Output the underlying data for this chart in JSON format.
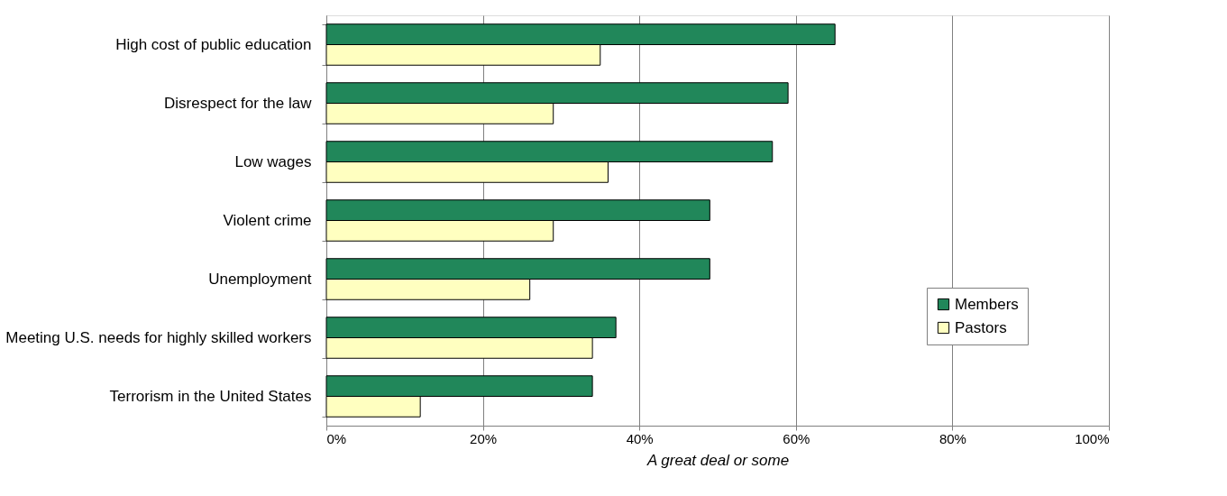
{
  "chart_data": {
    "type": "bar",
    "orientation": "horizontal",
    "categories": [
      "High cost of public education",
      "Disrespect for the law",
      "Low wages",
      "Violent crime",
      "Unemployment",
      "Meeting U.S. needs for highly skilled workers",
      "Terrorism in the United States"
    ],
    "series": [
      {
        "name": "Members",
        "color": "#21875a",
        "values": [
          65,
          59,
          57,
          49,
          49,
          37,
          34
        ]
      },
      {
        "name": "Pastors",
        "color": "#ffffc0",
        "values": [
          35,
          29,
          36,
          29,
          26,
          34,
          12
        ]
      }
    ],
    "xlim": [
      0,
      100
    ],
    "xticks": [
      {
        "value": 0,
        "label": "0%"
      },
      {
        "value": 20,
        "label": "20%"
      },
      {
        "value": 40,
        "label": "40%"
      },
      {
        "value": 60,
        "label": "60%"
      },
      {
        "value": 80,
        "label": "80%"
      },
      {
        "value": 100,
        "label": "100%"
      }
    ],
    "xlabel": "A great deal or some",
    "grid": "x",
    "legend": "bottom right"
  }
}
